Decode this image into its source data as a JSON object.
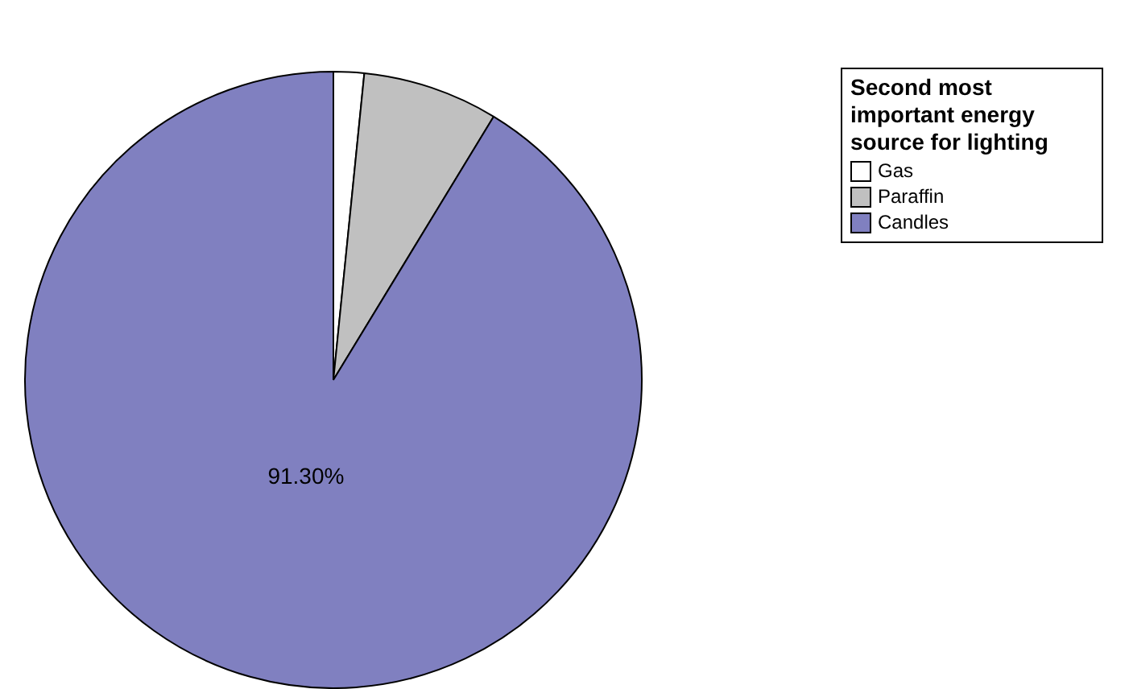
{
  "chart_data": {
    "type": "pie",
    "legend_title": "Second most important energy source for lighting",
    "categories": [
      "Gas",
      "Paraffin",
      "Candles"
    ],
    "values": [
      1.6,
      7.1,
      91.3
    ],
    "colors": [
      "#ffffff",
      "#c0c0c0",
      "#8080c0"
    ],
    "value_labels": [
      null,
      null,
      "91.30%"
    ],
    "legend": "top right"
  }
}
